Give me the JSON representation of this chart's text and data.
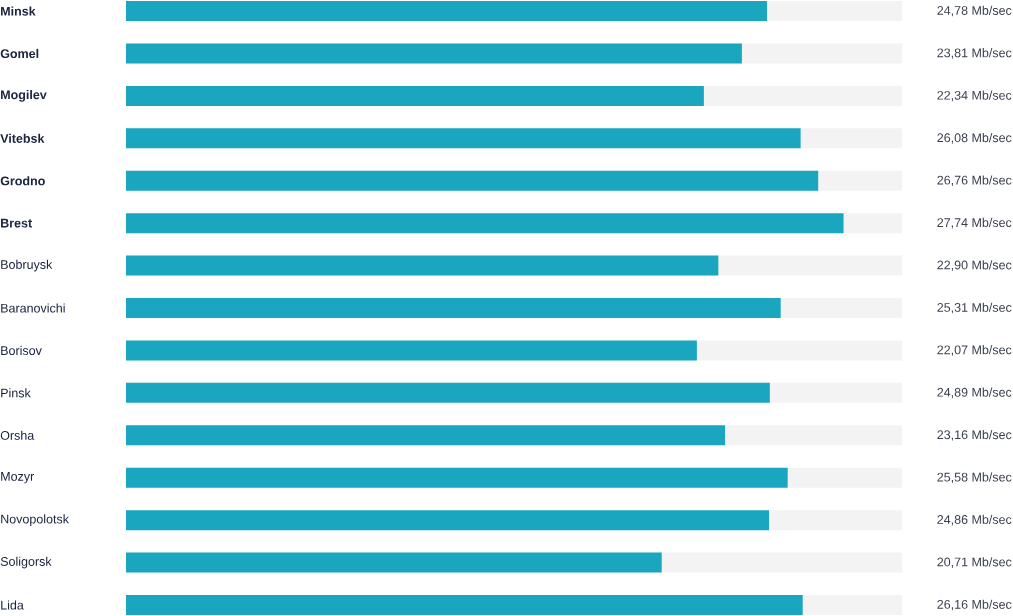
{
  "chart_data": {
    "type": "bar",
    "orientation": "horizontal",
    "categories": [
      "**Minsk**",
      "**Gomel**",
      "**Mogilev**",
      "**Vitebsk**",
      "**Grodno**",
      "**Brest**",
      "Bobruysk",
      "Baranovichi",
      "Borisov",
      "Pinsk",
      "Orsha",
      "Mozyr",
      "Novopolotsk",
      "Soligorsk",
      "Lida"
    ],
    "values": [
      24.78,
      23.81,
      22.34,
      26.08,
      26.76,
      27.74,
      22.9,
      25.31,
      22.07,
      24.89,
      23.16,
      25.58,
      24.86,
      20.71,
      26.16
    ],
    "value_labels": [
      "24,78 Mb/sec",
      "23,81 Mb/sec",
      "22,34 Mb/sec",
      "26,08 Mb/sec",
      "26,76 Mb/sec",
      "27,74 Mb/sec",
      "22,90 Mb/sec",
      "25,31 Mb/sec",
      "22,07 Mb/sec",
      "24,89 Mb/sec",
      "23,16 Mb/sec",
      "25,58 Mb/sec",
      "24,86 Mb/sec",
      "20,71 Mb/sec",
      "26,16 Mb/sec"
    ],
    "color": "#1ba6bf",
    "xlim": [
      0,
      30
    ]
  }
}
